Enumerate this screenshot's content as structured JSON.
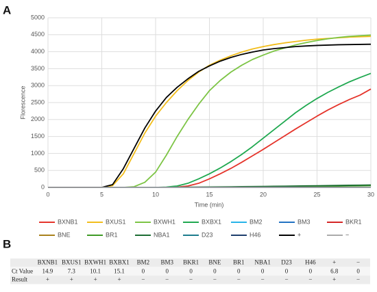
{
  "panel_labels": [
    "A",
    "B"
  ],
  "chart_data": {
    "type": "line",
    "x_label": "Time (min)",
    "y_label": "Florescence",
    "xlim": [
      0,
      30
    ],
    "ylim": [
      0,
      5000
    ],
    "xticks": [
      0,
      5,
      10,
      15,
      20,
      25,
      30
    ],
    "yticks": [
      0,
      500,
      1000,
      1500,
      2000,
      2500,
      3000,
      3500,
      4000,
      4500,
      5000
    ],
    "grid": true,
    "x": [
      0,
      1,
      2,
      3,
      4,
      5,
      6,
      7,
      8,
      9,
      10,
      11,
      12,
      13,
      14,
      15,
      16,
      17,
      18,
      19,
      20,
      21,
      22,
      23,
      24,
      25,
      26,
      27,
      28,
      29,
      30
    ],
    "series": [
      {
        "name": "BXNB1",
        "color": "#e5332a",
        "values": [
          0,
          0,
          0,
          0,
          0,
          0,
          0,
          0,
          0,
          0,
          0,
          0,
          10,
          40,
          120,
          250,
          400,
          560,
          740,
          930,
          1120,
          1320,
          1520,
          1720,
          1910,
          2100,
          2280,
          2440,
          2590,
          2720,
          2900
        ]
      },
      {
        "name": "BXUS1",
        "color": "#f2bd1b",
        "values": [
          0,
          0,
          0,
          0,
          0,
          0,
          50,
          400,
          1000,
          1600,
          2100,
          2500,
          2850,
          3150,
          3400,
          3600,
          3750,
          3880,
          3990,
          4080,
          4150,
          4210,
          4260,
          4300,
          4340,
          4370,
          4390,
          4410,
          4430,
          4440,
          4450
        ]
      },
      {
        "name": "BXWH1",
        "color": "#7cc444",
        "values": [
          0,
          0,
          0,
          0,
          0,
          0,
          0,
          0,
          20,
          150,
          450,
          950,
          1500,
          2000,
          2450,
          2850,
          3150,
          3400,
          3600,
          3770,
          3900,
          4020,
          4110,
          4200,
          4270,
          4330,
          4380,
          4420,
          4450,
          4470,
          4490
        ]
      },
      {
        "name": "BXBX1",
        "color": "#1ea84f",
        "values": [
          0,
          0,
          0,
          0,
          0,
          0,
          0,
          0,
          0,
          0,
          0,
          10,
          40,
          120,
          250,
          400,
          570,
          760,
          970,
          1200,
          1450,
          1700,
          1950,
          2200,
          2420,
          2620,
          2800,
          2960,
          3110,
          3240,
          3360
        ]
      },
      {
        "name": "BM2",
        "color": "#25b3e8",
        "values": [
          0,
          0,
          0,
          0,
          0,
          0,
          0,
          0,
          0,
          0,
          0,
          0,
          0,
          0,
          0,
          0,
          0,
          0,
          0,
          0,
          0,
          0,
          0,
          0,
          0,
          0,
          0,
          0,
          0,
          0,
          0
        ]
      },
      {
        "name": "BM3",
        "color": "#2071c2",
        "values": [
          0,
          0,
          0,
          0,
          0,
          0,
          0,
          0,
          0,
          0,
          0,
          0,
          0,
          0,
          0,
          0,
          0,
          0,
          0,
          0,
          0,
          0,
          0,
          0,
          0,
          0,
          0,
          0,
          0,
          0,
          0
        ]
      },
      {
        "name": "BKR1",
        "color": "#d42424",
        "values": [
          0,
          0,
          0,
          0,
          0,
          0,
          0,
          0,
          0,
          0,
          0,
          0,
          0,
          0,
          0,
          0,
          0,
          0,
          0,
          0,
          0,
          0,
          0,
          0,
          0,
          0,
          0,
          0,
          0,
          0,
          0
        ]
      },
      {
        "name": "BNE",
        "color": "#a8801a",
        "values": [
          0,
          0,
          0,
          0,
          0,
          0,
          0,
          0,
          0,
          0,
          0,
          0,
          0,
          0,
          0,
          0,
          0,
          0,
          0,
          0,
          0,
          0,
          0,
          0,
          0,
          0,
          0,
          0,
          0,
          0,
          0
        ]
      },
      {
        "name": "BR1",
        "color": "#3d9a24",
        "values": [
          0,
          0,
          0,
          0,
          0,
          0,
          0,
          0,
          0,
          0,
          0,
          0,
          0,
          0,
          0,
          0,
          5,
          8,
          10,
          13,
          16,
          19,
          22,
          25,
          28,
          31,
          35,
          39,
          43,
          47,
          50
        ]
      },
      {
        "name": "NBA1",
        "color": "#1b6b32",
        "values": [
          0,
          0,
          0,
          0,
          0,
          0,
          0,
          0,
          0,
          0,
          0,
          2,
          4,
          6,
          9,
          12,
          15,
          18,
          21,
          24,
          28,
          32,
          36,
          40,
          44,
          48,
          52,
          57,
          62,
          66,
          70
        ]
      },
      {
        "name": "D23",
        "color": "#1b7b8c",
        "values": [
          0,
          0,
          0,
          0,
          0,
          0,
          0,
          0,
          0,
          0,
          0,
          0,
          0,
          0,
          0,
          0,
          0,
          0,
          0,
          0,
          0,
          0,
          0,
          0,
          0,
          0,
          0,
          0,
          0,
          0,
          0
        ]
      },
      {
        "name": "H46",
        "color": "#1c3c6c",
        "values": [
          0,
          0,
          0,
          0,
          0,
          0,
          0,
          0,
          0,
          0,
          0,
          0,
          0,
          0,
          0,
          0,
          0,
          0,
          0,
          0,
          0,
          0,
          0,
          0,
          0,
          0,
          0,
          0,
          0,
          0,
          0
        ]
      },
      {
        "name": "+",
        "color": "#000000",
        "values": [
          0,
          0,
          0,
          0,
          0,
          0,
          80,
          550,
          1150,
          1750,
          2250,
          2650,
          2950,
          3200,
          3420,
          3580,
          3720,
          3830,
          3920,
          3990,
          4050,
          4090,
          4120,
          4150,
          4170,
          4185,
          4195,
          4205,
          4210,
          4215,
          4220
        ]
      },
      {
        "name": "−",
        "color": "#aaaaaa",
        "values": [
          0,
          0,
          0,
          0,
          0,
          0,
          0,
          0,
          0,
          0,
          0,
          0,
          0,
          0,
          0,
          0,
          0,
          0,
          0,
          0,
          0,
          0,
          0,
          0,
          0,
          0,
          0,
          0,
          0,
          0,
          0
        ]
      }
    ]
  },
  "table": {
    "header": [
      "BXNB1",
      "BXUS1",
      "BXWH1",
      "BXBX1",
      "BM2",
      "BM3",
      "BKR1",
      "BNE",
      "BR1",
      "NBA1",
      "D23",
      "H46",
      "+",
      "−"
    ],
    "rows": [
      [
        "Ct Value",
        14.9,
        7.3,
        10.1,
        15.1,
        0,
        0,
        0,
        0,
        0,
        0,
        0,
        0,
        6.8,
        0
      ],
      [
        "Result",
        "+",
        "+",
        "+",
        "+",
        "−",
        "−",
        "−",
        "−",
        "−",
        "−",
        "−",
        "−",
        "+",
        "−"
      ]
    ]
  }
}
